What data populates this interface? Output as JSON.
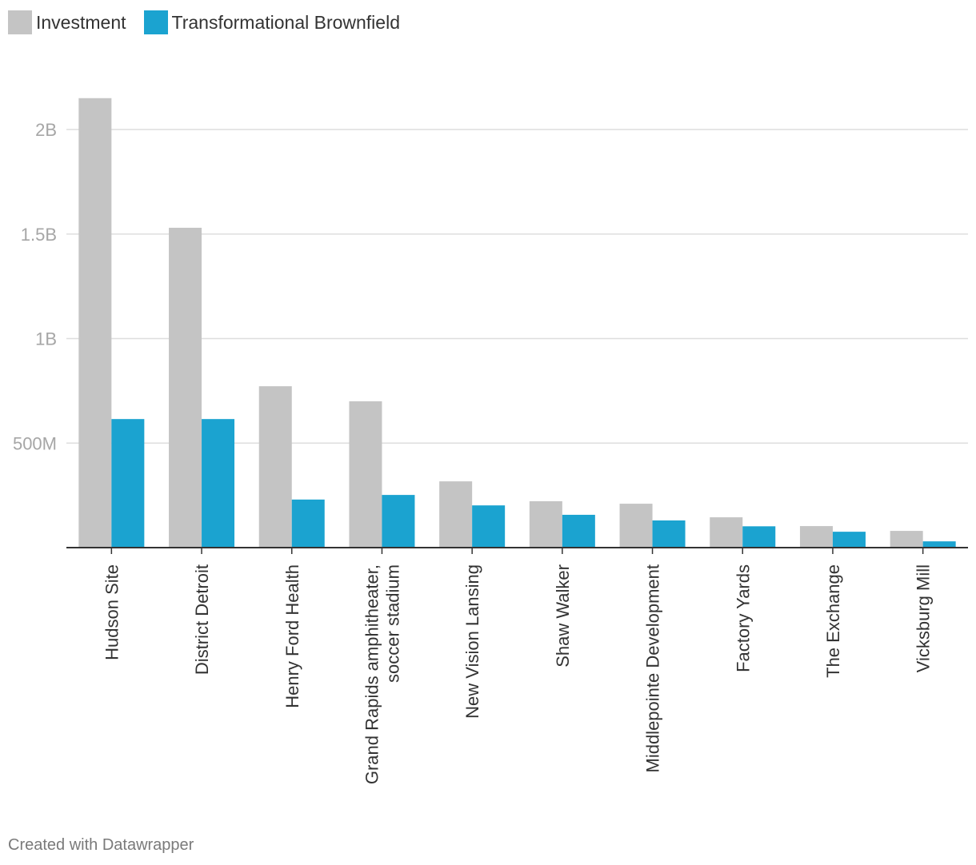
{
  "chart_data": {
    "type": "bar",
    "title": "",
    "xlabel": "",
    "ylabel": "",
    "categories": [
      [
        "Hudson Site"
      ],
      [
        "District Detroit"
      ],
      [
        "Henry Ford Health"
      ],
      [
        "Grand Rapids amphitheater,",
        "soccer stadium"
      ],
      [
        "New Vision Lansing"
      ],
      [
        "Shaw Walker"
      ],
      [
        "Middlepointe Development"
      ],
      [
        "Factory Yards"
      ],
      [
        "The Exchange"
      ],
      [
        "Vicksburg Mill"
      ]
    ],
    "series": [
      {
        "name": "Investment",
        "color": "#c4c4c4",
        "values": [
          2150000000,
          1530000000,
          772000000,
          700000000,
          317000000,
          222000000,
          210000000,
          145000000,
          103000000,
          80000000
        ]
      },
      {
        "name": "Transformational Brownfield",
        "color": "#1ba3d0",
        "values": [
          615000000,
          615000000,
          230000000,
          252000000,
          202000000,
          157000000,
          130000000,
          102000000,
          76000000,
          30000000
        ]
      }
    ],
    "yticks": [
      {
        "value": 500000000,
        "label": "500M"
      },
      {
        "value": 1000000000,
        "label": "1B"
      },
      {
        "value": 1500000000,
        "label": "1.5B"
      },
      {
        "value": 2000000000,
        "label": "2B"
      }
    ],
    "ylim": [
      0,
      2150000000
    ],
    "grid": true,
    "legend_position": "top-left"
  },
  "footer": {
    "credit": "Created with Datawrapper"
  }
}
